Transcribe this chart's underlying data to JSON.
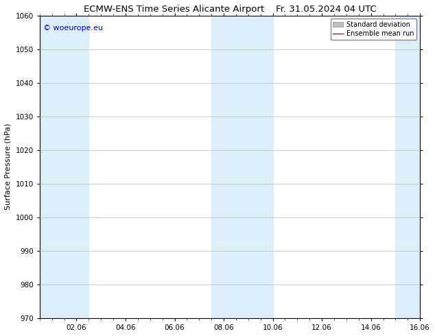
{
  "title_left": "ECMW-ENS Time Series Alicante Airport",
  "title_right": "Fr. 31.05.2024 04 UTC",
  "ylabel": "Surface Pressure (hPa)",
  "ylim": [
    970,
    1060
  ],
  "yticks": [
    970,
    980,
    990,
    1000,
    1010,
    1020,
    1030,
    1040,
    1050,
    1060
  ],
  "xlim": [
    0.0,
    15.5
  ],
  "xtick_labels": [
    "02.06",
    "04.06",
    "06.06",
    "08.06",
    "10.06",
    "12.06",
    "14.06",
    "16.06"
  ],
  "xtick_positions": [
    1.5,
    3.5,
    5.5,
    7.5,
    9.5,
    11.5,
    13.5,
    15.5
  ],
  "shaded_bands": [
    {
      "x_start": 0.0,
      "x_end": 2.0
    },
    {
      "x_start": 7.0,
      "x_end": 9.5
    },
    {
      "x_start": 14.5,
      "x_end": 15.5
    }
  ],
  "band_color": "#ddeef8",
  "band_alpha": 1.0,
  "background_color": "#ffffff",
  "grid_color": "#bbbbbb",
  "watermark_text": "© woeurope.eu",
  "watermark_color": "#0000cc",
  "watermark_fontsize": 8,
  "legend_std_label": "Standard deviation",
  "legend_mean_label": "Ensemble mean run",
  "legend_std_color": "#c0c0c0",
  "legend_mean_color": "#dd0000",
  "title_fontsize": 9.5,
  "axis_label_fontsize": 8,
  "tick_fontsize": 7.5
}
